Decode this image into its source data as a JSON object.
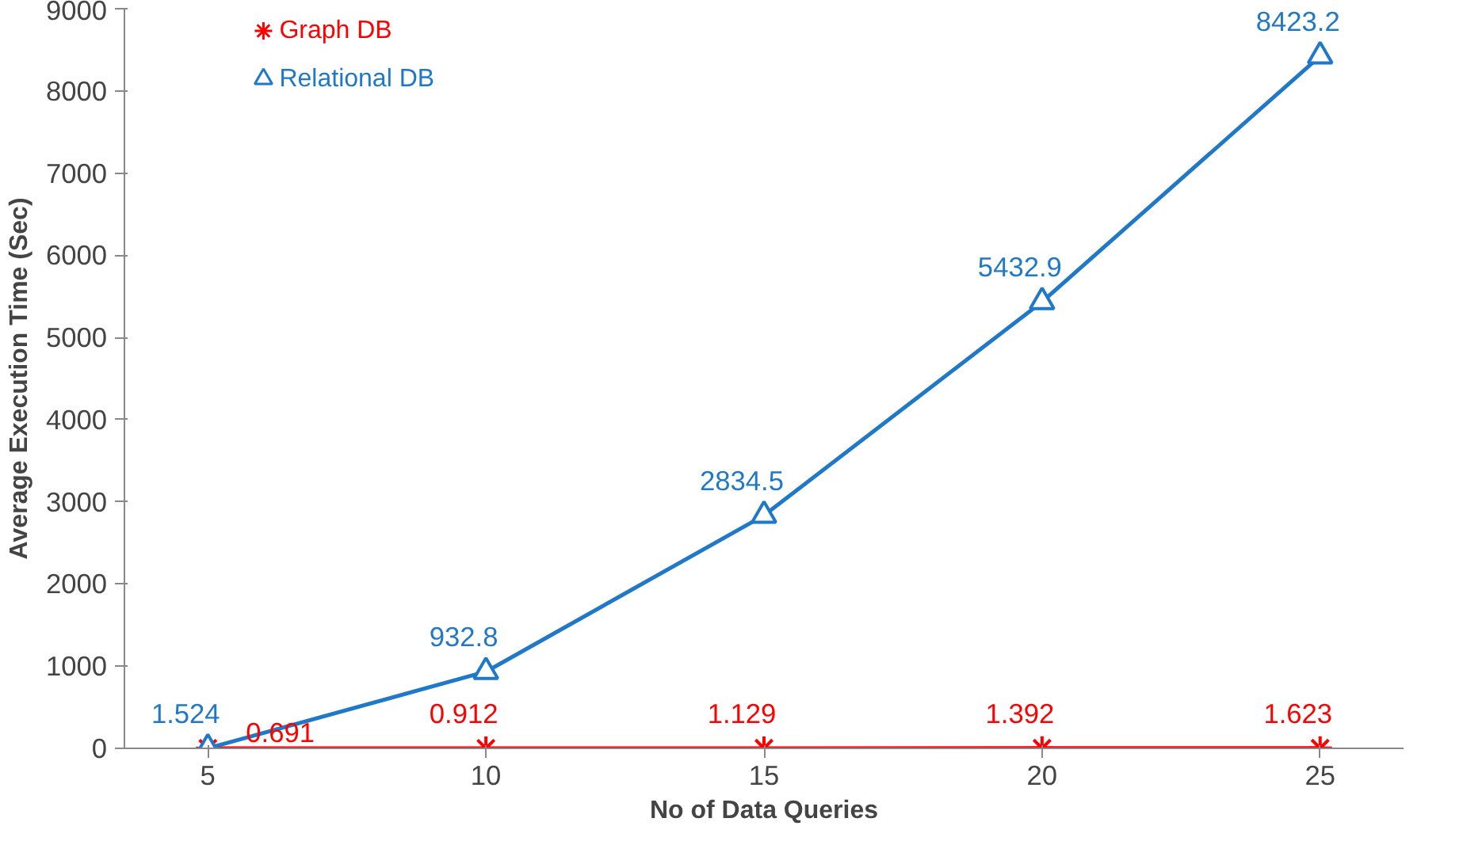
{
  "chart_data": {
    "type": "line",
    "xlabel": "No of Data Queries",
    "ylabel": "Average Execution Time (Sec)",
    "categories": [
      "5",
      "10",
      "15",
      "20",
      "25"
    ],
    "ylim": [
      0,
      9000
    ],
    "yticks": [
      0,
      1000,
      2000,
      3000,
      4000,
      5000,
      6000,
      7000,
      8000,
      9000
    ],
    "grid": false,
    "legend": "top left",
    "data_labels": true,
    "series": [
      {
        "name": "Graph DB",
        "color": "#ff0000",
        "marker": "cross",
        "values": [
          0.691,
          0.912,
          1.129,
          1.392,
          1.623
        ]
      },
      {
        "name": "Relational DB",
        "color": "#1f78c8",
        "marker": "triangle",
        "values": [
          1.524,
          932.8,
          2834.5,
          5432.9,
          8423.2
        ]
      }
    ]
  }
}
